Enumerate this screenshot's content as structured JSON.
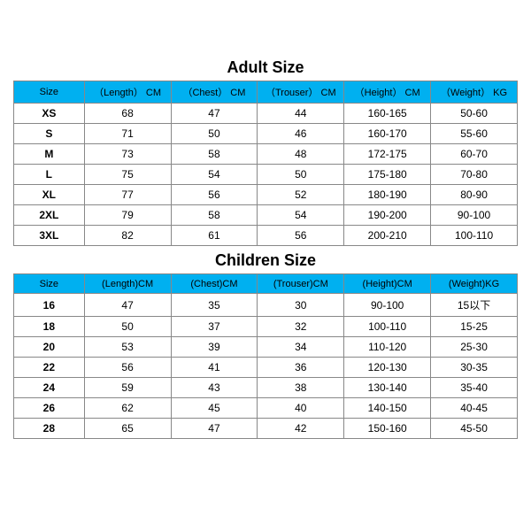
{
  "adult": {
    "title": "Adult Size",
    "header_bg": "#00b0f0",
    "columns": [
      "Size",
      "（Length） CM",
      "（Chest） CM",
      "（Trouser） CM",
      "（Height） CM",
      "（Weight） KG"
    ],
    "rows": [
      [
        "XS",
        "68",
        "47",
        "44",
        "160-165",
        "50-60"
      ],
      [
        "S",
        "71",
        "50",
        "46",
        "160-170",
        "55-60"
      ],
      [
        "M",
        "73",
        "58",
        "48",
        "172-175",
        "60-70"
      ],
      [
        "L",
        "75",
        "54",
        "50",
        "175-180",
        "70-80"
      ],
      [
        "XL",
        "77",
        "56",
        "52",
        "180-190",
        "80-90"
      ],
      [
        "2XL",
        "79",
        "58",
        "54",
        "190-200",
        "90-100"
      ],
      [
        "3XL",
        "82",
        "61",
        "56",
        "200-210",
        "100-110"
      ]
    ]
  },
  "children": {
    "title": "Children Size",
    "header_bg": "#00b0f0",
    "columns": [
      "Size",
      "(Length)CM",
      "(Chest)CM",
      "(Trouser)CM",
      "(Height)CM",
      "(Weight)KG"
    ],
    "rows": [
      [
        "16",
        "47",
        "35",
        "30",
        "90-100",
        "15以下"
      ],
      [
        "18",
        "50",
        "37",
        "32",
        "100-110",
        "15-25"
      ],
      [
        "20",
        "53",
        "39",
        "34",
        "110-120",
        "25-30"
      ],
      [
        "22",
        "56",
        "41",
        "36",
        "120-130",
        "30-35"
      ],
      [
        "24",
        "59",
        "43",
        "38",
        "130-140",
        "35-40"
      ],
      [
        "26",
        "62",
        "45",
        "40",
        "140-150",
        "40-45"
      ],
      [
        "28",
        "65",
        "47",
        "42",
        "150-160",
        "45-50"
      ]
    ]
  }
}
